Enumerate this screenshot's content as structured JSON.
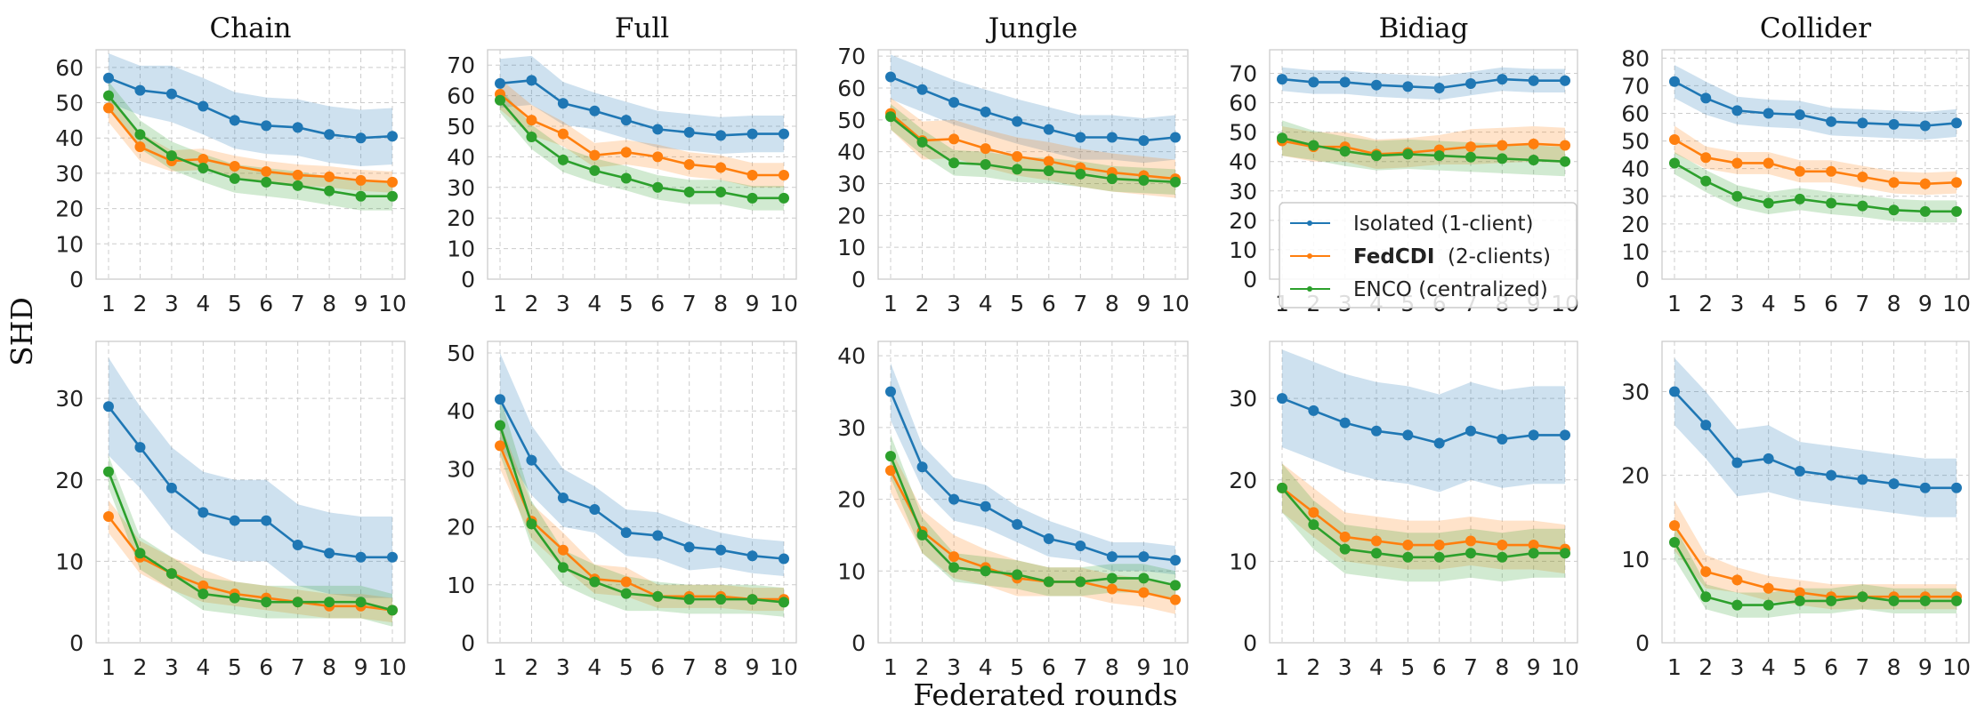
{
  "figure": {
    "ylabel": "SHD",
    "xlabel": "Federated rounds"
  },
  "legend": {
    "items": [
      {
        "name": "Isolated",
        "suffix": " (1-client)",
        "bold": false,
        "color": "#1f77b4"
      },
      {
        "name": "FedCDI",
        "suffix": "  (2-clients)",
        "bold": true,
        "color": "#ff7f0e"
      },
      {
        "name": "ENCO",
        "suffix": " (centralized)",
        "bold": false,
        "color": "#2ca02c"
      }
    ],
    "location": "lower-center of top Bidiag panel"
  },
  "colors": {
    "isolated": "#1f77b4",
    "fedcdi": "#ff7f0e",
    "enco": "#2ca02c",
    "panel_bg": "#ffffff",
    "grid": "#cccccc"
  },
  "chart_data": [
    {
      "type": "line",
      "title": "Chain",
      "row": 0,
      "col": 0,
      "x": [
        1,
        2,
        3,
        4,
        5,
        6,
        7,
        8,
        9,
        10
      ],
      "ylim": [
        0,
        65
      ],
      "yticks": [
        0,
        10,
        20,
        30,
        40,
        50,
        60
      ],
      "series": [
        {
          "name": "Isolated (1-client)",
          "values": [
            57,
            53.5,
            52.5,
            49,
            45,
            43.5,
            43,
            41,
            40,
            40.5
          ],
          "band": [
            7,
            7,
            8,
            8,
            8,
            8,
            8,
            8,
            8,
            8
          ]
        },
        {
          "name": "FedCDI (2-clients)",
          "values": [
            48.5,
            37.5,
            33.5,
            34,
            32,
            30.5,
            29.5,
            29,
            28,
            27.5
          ],
          "band": [
            4,
            4,
            3,
            3,
            3,
            3,
            3,
            3,
            3,
            3
          ]
        },
        {
          "name": "ENCO (centralized)",
          "values": [
            52,
            41,
            35,
            31.5,
            28.5,
            27.5,
            26.5,
            25,
            23.5,
            23.5
          ],
          "band": [
            4,
            4,
            4,
            4,
            4,
            4,
            4,
            4,
            4,
            4
          ]
        }
      ]
    },
    {
      "type": "line",
      "title": "Full",
      "row": 0,
      "col": 1,
      "x": [
        1,
        2,
        3,
        4,
        5,
        6,
        7,
        8,
        9,
        10
      ],
      "ylim": [
        0,
        75
      ],
      "yticks": [
        0,
        10,
        20,
        30,
        40,
        50,
        60,
        70
      ],
      "series": [
        {
          "name": "Isolated (1-client)",
          "values": [
            64,
            65,
            57.5,
            55,
            52,
            49,
            48,
            47,
            47.5,
            47.5
          ],
          "band": [
            8,
            8,
            7,
            6,
            6,
            6,
            6,
            6,
            6,
            6
          ]
        },
        {
          "name": "FedCDI (2-clients)",
          "values": [
            60.5,
            52,
            47.5,
            40.5,
            41.5,
            40,
            37.5,
            36.5,
            34,
            34
          ],
          "band": [
            5,
            5,
            4,
            4,
            4,
            4,
            4,
            4,
            4,
            4
          ]
        },
        {
          "name": "ENCO (centralized)",
          "values": [
            58.5,
            46.5,
            39,
            35.5,
            33,
            30,
            28.5,
            28.5,
            26.5,
            26.5
          ],
          "band": [
            4,
            4,
            4,
            4,
            4,
            4,
            4,
            4,
            4,
            4
          ]
        }
      ]
    },
    {
      "type": "line",
      "title": "Jungle",
      "row": 0,
      "col": 2,
      "x": [
        1,
        2,
        3,
        4,
        5,
        6,
        7,
        8,
        9,
        10
      ],
      "ylim": [
        0,
        72
      ],
      "yticks": [
        0,
        10,
        20,
        30,
        40,
        50,
        60,
        70
      ],
      "series": [
        {
          "name": "Isolated (1-client)",
          "values": [
            63.5,
            59.5,
            55.5,
            52.5,
            49.5,
            47,
            44.5,
            44.5,
            43.5,
            44.5
          ],
          "band": [
            7,
            7,
            7,
            7,
            7,
            7,
            7,
            7,
            7,
            7
          ]
        },
        {
          "name": "FedCDI (2-clients)",
          "values": [
            52,
            43.5,
            44,
            41,
            38.5,
            37,
            35,
            33.5,
            32.5,
            31.5
          ],
          "band": [
            5,
            6,
            6,
            6,
            6,
            6,
            6,
            6,
            6,
            6
          ]
        },
        {
          "name": "ENCO (centralized)",
          "values": [
            51,
            43,
            36.5,
            36,
            34.5,
            34,
            33,
            31.5,
            31,
            30.5
          ],
          "band": [
            4,
            4,
            4,
            4,
            4,
            4,
            4,
            4,
            4,
            4
          ]
        }
      ]
    },
    {
      "type": "line",
      "title": "Bidiag",
      "row": 0,
      "col": 3,
      "x": [
        1,
        2,
        3,
        4,
        5,
        6,
        7,
        8,
        9,
        10
      ],
      "ylim": [
        0,
        78
      ],
      "yticks": [
        0,
        10,
        20,
        30,
        40,
        50,
        60,
        70
      ],
      "series": [
        {
          "name": "Isolated (1-client)",
          "values": [
            68,
            67,
            67,
            66,
            65.5,
            65,
            66.5,
            68,
            67.5,
            67.5
          ],
          "band": [
            4,
            4,
            4,
            4,
            4,
            4,
            4,
            4,
            4,
            4
          ]
        },
        {
          "name": "FedCDI (2-clients)",
          "values": [
            47,
            45,
            45,
            42.5,
            43,
            44,
            45,
            45.5,
            46,
            45.5
          ],
          "band": [
            5,
            5,
            5,
            5,
            5,
            5,
            6,
            6,
            6,
            6
          ]
        },
        {
          "name": "ENCO (centralized)",
          "values": [
            48,
            45.5,
            43.5,
            42,
            42.5,
            42,
            41.5,
            41,
            40.5,
            40
          ],
          "band": [
            6,
            5,
            5,
            5,
            5,
            5,
            5,
            5,
            5,
            5
          ]
        }
      ]
    },
    {
      "type": "line",
      "title": "Collider",
      "row": 0,
      "col": 4,
      "x": [
        1,
        2,
        3,
        4,
        5,
        6,
        7,
        8,
        9,
        10
      ],
      "ylim": [
        0,
        83
      ],
      "yticks": [
        0,
        10,
        20,
        30,
        40,
        50,
        60,
        70,
        80
      ],
      "series": [
        {
          "name": "Isolated (1-client)",
          "values": [
            71.5,
            65.5,
            61,
            60,
            59.5,
            57,
            56.5,
            56,
            55.5,
            56.5
          ],
          "band": [
            6,
            6,
            5,
            5,
            5,
            5,
            5,
            5,
            5,
            5
          ]
        },
        {
          "name": "FedCDI (2-clients)",
          "values": [
            50.5,
            44,
            42,
            42,
            39,
            39,
            37,
            35,
            34.5,
            35
          ],
          "band": [
            5,
            4,
            4,
            4,
            4,
            4,
            4,
            4,
            4,
            4
          ]
        },
        {
          "name": "ENCO (centralized)",
          "values": [
            42,
            35.5,
            30,
            27.5,
            29,
            27.5,
            26.5,
            25,
            24.5,
            24.5
          ],
          "band": [
            4,
            4,
            4,
            4,
            4,
            4,
            4,
            4,
            4,
            4
          ]
        }
      ]
    },
    {
      "type": "line",
      "title": "",
      "row": 1,
      "col": 0,
      "x": [
        1,
        2,
        3,
        4,
        5,
        6,
        7,
        8,
        9,
        10
      ],
      "ylim": [
        0,
        37
      ],
      "yticks": [
        0,
        10,
        20,
        30
      ],
      "series": [
        {
          "name": "Isolated (1-client)",
          "values": [
            29,
            24,
            19,
            16,
            15,
            15,
            12,
            11,
            10.5,
            10.5
          ],
          "band": [
            6,
            5,
            5,
            5,
            5,
            5,
            5,
            5,
            5,
            5
          ]
        },
        {
          "name": "FedCDI (2-clients)",
          "values": [
            15.5,
            10.5,
            8.5,
            7,
            6,
            5.5,
            5,
            4.5,
            4.5,
            4
          ],
          "band": [
            2,
            2,
            2,
            2,
            1.5,
            1.5,
            1.5,
            1.5,
            1.5,
            1.5
          ]
        },
        {
          "name": "ENCO (centralized)",
          "values": [
            21,
            11,
            8.5,
            6,
            5.5,
            5,
            5,
            5,
            5,
            4
          ],
          "band": [
            2,
            2,
            2,
            2,
            2,
            2,
            2,
            2,
            2,
            2
          ]
        }
      ]
    },
    {
      "type": "line",
      "title": "",
      "row": 1,
      "col": 1,
      "x": [
        1,
        2,
        3,
        4,
        5,
        6,
        7,
        8,
        9,
        10
      ],
      "ylim": [
        0,
        52
      ],
      "yticks": [
        0,
        10,
        20,
        30,
        40,
        50
      ],
      "series": [
        {
          "name": "Isolated (1-client)",
          "values": [
            42,
            31.5,
            25,
            23,
            19,
            18.5,
            16.5,
            16,
            15,
            14.5
          ],
          "band": [
            8,
            6,
            5,
            4,
            4,
            4,
            4,
            3,
            3,
            3
          ]
        },
        {
          "name": "FedCDI (2-clients)",
          "values": [
            34,
            21,
            16,
            11,
            10.5,
            8,
            8,
            8,
            7.5,
            7.5
          ],
          "band": [
            4,
            3,
            3,
            2.5,
            2.5,
            2,
            2,
            2,
            2,
            2
          ]
        },
        {
          "name": "ENCO (centralized)",
          "values": [
            37.5,
            20.5,
            13,
            10.5,
            8.5,
            8,
            7.5,
            7.5,
            7.5,
            7
          ],
          "band": [
            5,
            4,
            3,
            3,
            3,
            2.5,
            2.5,
            2.5,
            2.5,
            2.5
          ]
        }
      ]
    },
    {
      "type": "line",
      "title": "",
      "row": 1,
      "col": 2,
      "x": [
        1,
        2,
        3,
        4,
        5,
        6,
        7,
        8,
        9,
        10
      ],
      "ylim": [
        0,
        42
      ],
      "yticks": [
        0,
        10,
        20,
        30,
        40
      ],
      "series": [
        {
          "name": "Isolated (1-client)",
          "values": [
            35,
            24.5,
            20,
            19,
            16.5,
            14.5,
            13.5,
            12,
            12,
            11.5
          ],
          "band": [
            4,
            3,
            3,
            3,
            2.5,
            2.5,
            2,
            2,
            2,
            2
          ]
        },
        {
          "name": "FedCDI (2-clients)",
          "values": [
            24,
            15.5,
            12,
            10.5,
            9,
            8.5,
            8.5,
            7.5,
            7,
            6
          ],
          "band": [
            3,
            3,
            3,
            2.5,
            2.5,
            2,
            2,
            2,
            2,
            2
          ]
        },
        {
          "name": "ENCO (centralized)",
          "values": [
            26,
            15,
            10.5,
            10,
            9.5,
            8.5,
            8.5,
            9,
            9,
            8
          ],
          "band": [
            3,
            2.5,
            2,
            2,
            2,
            2,
            2,
            2,
            2,
            2
          ]
        }
      ]
    },
    {
      "type": "line",
      "title": "",
      "row": 1,
      "col": 3,
      "x": [
        1,
        2,
        3,
        4,
        5,
        6,
        7,
        8,
        9,
        10
      ],
      "ylim": [
        0,
        37
      ],
      "yticks": [
        0,
        10,
        20,
        30
      ],
      "series": [
        {
          "name": "Isolated (1-client)",
          "values": [
            30,
            28.5,
            27,
            26,
            25.5,
            24.5,
            26,
            25,
            25.5,
            25.5
          ],
          "band": [
            6,
            6,
            6,
            6,
            6,
            6,
            6,
            6,
            6,
            6
          ]
        },
        {
          "name": "FedCDI (2-clients)",
          "values": [
            19,
            16,
            13,
            12.5,
            12,
            12,
            12.5,
            12,
            12,
            11.5
          ],
          "band": [
            3,
            3,
            3,
            3,
            3,
            3,
            3,
            3,
            3,
            3
          ]
        },
        {
          "name": "ENCO (centralized)",
          "values": [
            19,
            14.5,
            11.5,
            11,
            10.5,
            10.5,
            11,
            10.5,
            11,
            11
          ],
          "band": [
            3,
            3,
            3,
            3,
            3,
            3,
            3,
            3,
            3,
            3
          ]
        }
      ]
    },
    {
      "type": "line",
      "title": "",
      "row": 1,
      "col": 4,
      "x": [
        1,
        2,
        3,
        4,
        5,
        6,
        7,
        8,
        9,
        10
      ],
      "ylim": [
        0,
        36
      ],
      "yticks": [
        0,
        10,
        20,
        30
      ],
      "series": [
        {
          "name": "Isolated (1-client)",
          "values": [
            30,
            26,
            21.5,
            22,
            20.5,
            20,
            19.5,
            19,
            18.5,
            18.5
          ],
          "band": [
            4,
            4,
            4,
            4,
            3.5,
            3.5,
            3.5,
            3.5,
            3.5,
            3.5
          ]
        },
        {
          "name": "FedCDI (2-clients)",
          "values": [
            14,
            8.5,
            7.5,
            6.5,
            6,
            5.5,
            5.5,
            5.5,
            5.5,
            5.5
          ],
          "band": [
            3,
            2,
            1.5,
            1.5,
            1.5,
            1.5,
            1.5,
            1.5,
            1.5,
            1.5
          ]
        },
        {
          "name": "ENCO (centralized)",
          "values": [
            12,
            5.5,
            4.5,
            4.5,
            5,
            5,
            5.5,
            5,
            5,
            5
          ],
          "band": [
            2,
            1.5,
            1.5,
            1.5,
            1.5,
            1.5,
            1.5,
            1.5,
            1.5,
            1.5
          ]
        }
      ]
    }
  ]
}
